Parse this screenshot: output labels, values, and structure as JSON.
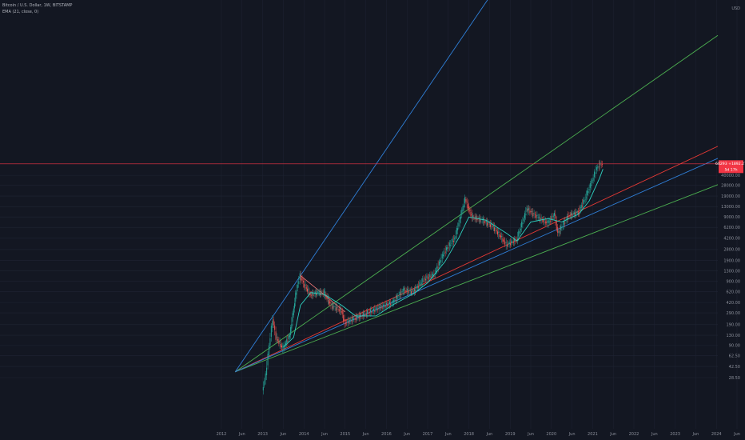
{
  "header": {
    "symbol_line": "Bitcoin / U.S. Dollar, 1W, BITSTAMP",
    "indicator_line": "EMA (21, close, 0)"
  },
  "price_badge": {
    "price": "60293 +1892.27",
    "countdown": "5d 17h",
    "color": "#f23645"
  },
  "colors": {
    "background": "#131722",
    "grid": "#1f2433",
    "candle_up": "#26a69a",
    "candle_down": "#ef5350",
    "ema": "#2ed1c0",
    "fan_outer": "#2f7fd8",
    "fan_inner": "#4caf50",
    "fan_mid": "#e53935",
    "current_price_line": "#f23645",
    "diagonal_resistance": "#e57373"
  },
  "chart_data": {
    "type": "line",
    "scale": "log",
    "ylim": [
      18,
      60000
    ],
    "y_ticks": [
      "40000.00",
      "USD",
      "28000.00",
      "19000.00",
      "13000.00",
      "9000.00",
      "6200.00",
      "4200.00",
      "2800.00",
      "1900.00",
      "1300.00",
      "900.00",
      "620.00",
      "420.00",
      "290.00",
      "190.00",
      "130.00",
      "90.00",
      "62.50",
      "42.50",
      "28.50"
    ],
    "x_ticks": [
      "2012",
      "Jun",
      "2013",
      "Jun",
      "2014",
      "Jun",
      "2015",
      "Jun",
      "2016",
      "Jun",
      "2017",
      "Jun",
      "2018",
      "Jun",
      "2019",
      "Jun",
      "2020",
      "Jun",
      "2021",
      "Jun",
      "2022",
      "Jun",
      "2023",
      "Jun",
      "2024",
      "Jun"
    ],
    "current_price": 60293,
    "price_series": [
      {
        "date": "2013-01",
        "price": 18
      },
      {
        "date": "2013-02",
        "price": 31
      },
      {
        "date": "2013-03",
        "price": 90
      },
      {
        "date": "2013-04",
        "price": 230
      },
      {
        "date": "2013-05",
        "price": 120
      },
      {
        "date": "2013-07",
        "price": 80
      },
      {
        "date": "2013-09",
        "price": 130
      },
      {
        "date": "2013-11",
        "price": 700
      },
      {
        "date": "2013-12",
        "price": 1100
      },
      {
        "date": "2014-01",
        "price": 820
      },
      {
        "date": "2014-03",
        "price": 550
      },
      {
        "date": "2014-05",
        "price": 600
      },
      {
        "date": "2014-07",
        "price": 590
      },
      {
        "date": "2014-09",
        "price": 380
      },
      {
        "date": "2014-12",
        "price": 310
      },
      {
        "date": "2015-01",
        "price": 200
      },
      {
        "date": "2015-04",
        "price": 240
      },
      {
        "date": "2015-07",
        "price": 280
      },
      {
        "date": "2015-11",
        "price": 350
      },
      {
        "date": "2016-03",
        "price": 420
      },
      {
        "date": "2016-06",
        "price": 650
      },
      {
        "date": "2016-09",
        "price": 620
      },
      {
        "date": "2016-12",
        "price": 960
      },
      {
        "date": "2017-03",
        "price": 1150
      },
      {
        "date": "2017-06",
        "price": 2600
      },
      {
        "date": "2017-09",
        "price": 4200
      },
      {
        "date": "2017-12",
        "price": 17000
      },
      {
        "date": "2018-02",
        "price": 9000
      },
      {
        "date": "2018-05",
        "price": 8000
      },
      {
        "date": "2018-08",
        "price": 6500
      },
      {
        "date": "2018-11",
        "price": 4000
      },
      {
        "date": "2018-12",
        "price": 3300
      },
      {
        "date": "2019-03",
        "price": 4000
      },
      {
        "date": "2019-06",
        "price": 12000
      },
      {
        "date": "2019-09",
        "price": 9000
      },
      {
        "date": "2019-12",
        "price": 7200
      },
      {
        "date": "2020-02",
        "price": 9800
      },
      {
        "date": "2020-03",
        "price": 5000
      },
      {
        "date": "2020-06",
        "price": 9300
      },
      {
        "date": "2020-09",
        "price": 10700
      },
      {
        "date": "2020-11",
        "price": 18000
      },
      {
        "date": "2021-01",
        "price": 33000
      },
      {
        "date": "2021-02",
        "price": 48000
      },
      {
        "date": "2021-03",
        "price": 58000
      },
      {
        "date": "2021-04",
        "price": 60293
      }
    ],
    "ema_series": [
      {
        "date": "2013-07",
        "price": 85
      },
      {
        "date": "2013-10",
        "price": 120
      },
      {
        "date": "2013-12",
        "price": 380
      },
      {
        "date": "2014-03",
        "price": 600
      },
      {
        "date": "2014-07",
        "price": 560
      },
      {
        "date": "2014-12",
        "price": 380
      },
      {
        "date": "2015-04",
        "price": 260
      },
      {
        "date": "2015-10",
        "price": 260
      },
      {
        "date": "2016-03",
        "price": 390
      },
      {
        "date": "2016-09",
        "price": 580
      },
      {
        "date": "2017-01",
        "price": 850
      },
      {
        "date": "2017-06",
        "price": 1800
      },
      {
        "date": "2017-10",
        "price": 4200
      },
      {
        "date": "2018-01",
        "price": 9000
      },
      {
        "date": "2018-06",
        "price": 8000
      },
      {
        "date": "2018-12",
        "price": 5000
      },
      {
        "date": "2019-03",
        "price": 3800
      },
      {
        "date": "2019-07",
        "price": 7500
      },
      {
        "date": "2019-12",
        "price": 8500
      },
      {
        "date": "2020-04",
        "price": 7500
      },
      {
        "date": "2020-09",
        "price": 10000
      },
      {
        "date": "2020-12",
        "price": 16000
      },
      {
        "date": "2021-03",
        "price": 36000
      },
      {
        "date": "2021-04",
        "price": 50000
      }
    ],
    "fan_origin": {
      "date": "2012-05",
      "price": 35
    },
    "fan_lines": [
      {
        "color_key": "fan_outer",
        "through": {
          "date": "2013-12",
          "price": 1100
        }
      },
      {
        "color_key": "fan_inner",
        "through": {
          "date": "2018-01",
          "price": 12000
        }
      },
      {
        "color_key": "fan_mid",
        "through": {
          "date": "2018-12",
          "price": 3300
        }
      },
      {
        "color_key": "fan_inner",
        "through": {
          "date": "2018-01",
          "price": 900
        }
      },
      {
        "color_key": "fan_outer",
        "through": {
          "date": "2015-01",
          "price": 200
        }
      }
    ],
    "resistance_line": [
      {
        "date": "2013-12",
        "price": 1100
      },
      {
        "date": "2015-01",
        "price": 300
      }
    ]
  }
}
